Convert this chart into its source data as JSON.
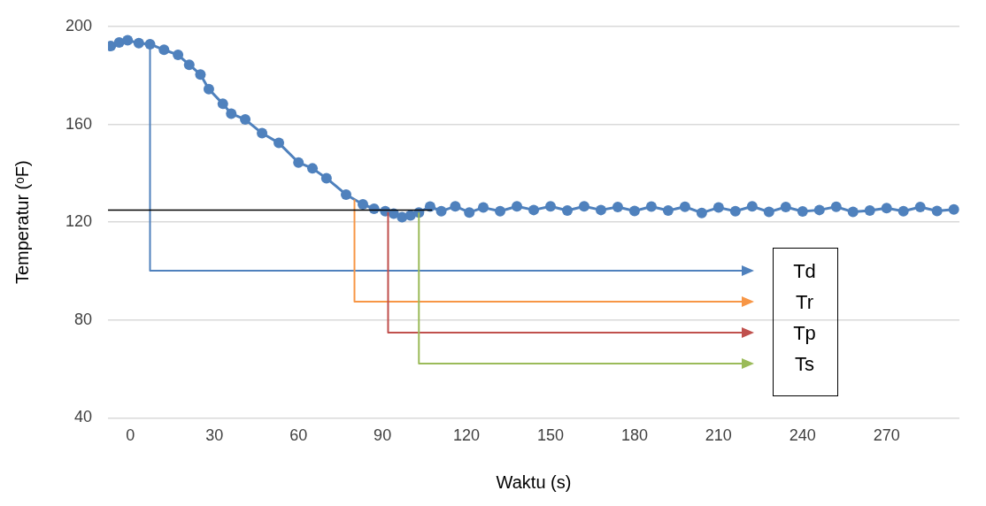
{
  "chart_data": {
    "type": "line",
    "xlabel": "Waktu (s)",
    "ylabel": "Temperatur (ᵒF)",
    "xlim": [
      -8,
      296
    ],
    "xticks": [
      0,
      30,
      60,
      90,
      120,
      150,
      180,
      210,
      240,
      270
    ],
    "ylim": [
      40,
      200
    ],
    "yticks": [
      40,
      80,
      120,
      160,
      200
    ],
    "grid": "y",
    "legend": false,
    "marker": "circle",
    "series": [
      {
        "color": "#4f81bd",
        "x": [
          -7,
          -4,
          -1,
          3,
          7,
          12,
          17,
          21,
          25,
          28,
          33,
          36,
          41,
          47,
          53,
          60,
          65,
          70,
          77,
          83,
          87,
          91,
          94,
          97,
          100,
          103,
          107,
          111,
          116,
          121,
          126,
          132,
          138,
          144,
          150,
          156,
          162,
          168,
          174,
          180,
          186,
          192,
          198,
          204,
          210,
          216,
          222,
          228,
          234,
          240,
          246,
          252,
          258,
          264,
          270,
          276,
          282,
          288,
          294
        ],
        "values": [
          192,
          193.5,
          194.4,
          193.2,
          192.8,
          190.5,
          188.4,
          184.4,
          180.4,
          174.4,
          168.4,
          164.4,
          162,
          156.4,
          152.4,
          144.4,
          142,
          138,
          131.3,
          127.3,
          125.5,
          124.5,
          123.5,
          122.1,
          122.8,
          124,
          126.4,
          124.5,
          126.5,
          124,
          126,
          124.5,
          126.5,
          125,
          126.5,
          124.8,
          126.5,
          125,
          126.2,
          124.6,
          126.4,
          124.8,
          126.3,
          123.8,
          126,
          124.5,
          126.5,
          124.2,
          126.2,
          124.4,
          125,
          126.3,
          124.2,
          124.8,
          125.8,
          124.5,
          126.2,
          124.6,
          125.2
        ]
      }
    ],
    "ref_lines": [
      {
        "axis": "y",
        "value": 125,
        "label": null,
        "color": "#000000"
      },
      {
        "axis": "x",
        "value": 7,
        "label": "Td",
        "color": "#4f81bd"
      },
      {
        "axis": "x",
        "value": 80,
        "label": "Tr",
        "color": "#f79646"
      },
      {
        "axis": "x",
        "value": 92,
        "label": "Tp",
        "color": "#c0504d"
      },
      {
        "axis": "x",
        "value": 103,
        "label": "Ts",
        "color": "#9bbb59"
      }
    ]
  }
}
